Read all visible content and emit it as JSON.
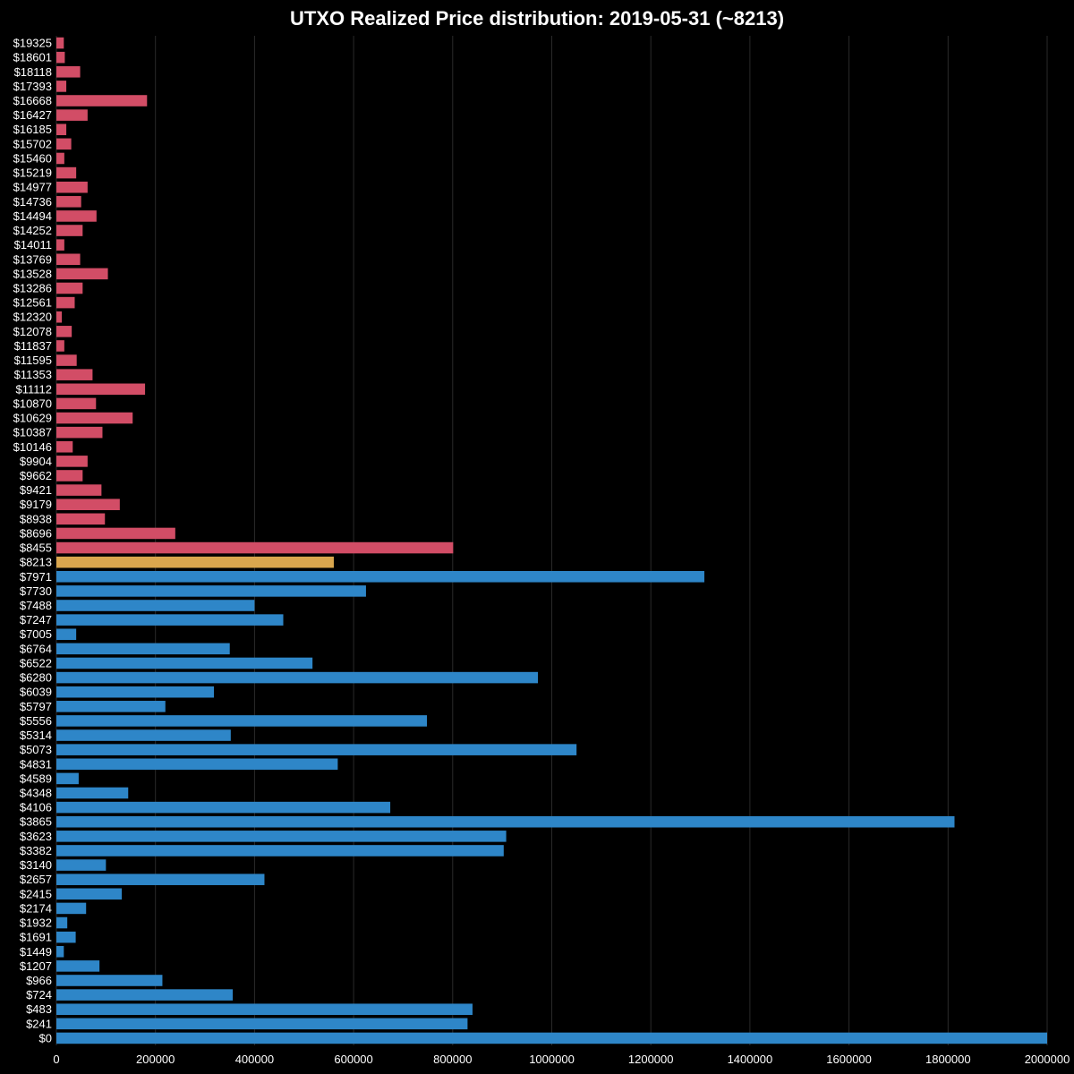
{
  "chart_data": {
    "type": "bar",
    "orientation": "horizontal",
    "title": "UTXO Realized Price distribution: 2019-05-31 (~8213)",
    "xlim": [
      0,
      2000000
    ],
    "xticks": [
      "0",
      "200000",
      "400000",
      "600000",
      "800000",
      "1000000",
      "1200000",
      "1400000",
      "1600000",
      "1800000",
      "2000000"
    ],
    "grid": true,
    "colors": {
      "below": "#2e86c8",
      "current": "#d9a64e",
      "above": "#d24d66",
      "grid": "#2a2a2a",
      "background": "#000000"
    },
    "categories": [
      "$19325",
      "$18601",
      "$18118",
      "$17393",
      "$16668",
      "$16427",
      "$16185",
      "$15702",
      "$15460",
      "$15219",
      "$14977",
      "$14736",
      "$14494",
      "$14252",
      "$14011",
      "$13769",
      "$13528",
      "$13286",
      "$12561",
      "$12320",
      "$12078",
      "$11837",
      "$11595",
      "$11353",
      "$11112",
      "$10870",
      "$10629",
      "$10387",
      "$10146",
      "$9904",
      "$9662",
      "$9421",
      "$9179",
      "$8938",
      "$8696",
      "$8455",
      "$8213",
      "$7971",
      "$7730",
      "$7488",
      "$7247",
      "$7005",
      "$6764",
      "$6522",
      "$6280",
      "$6039",
      "$5797",
      "$5556",
      "$5314",
      "$5073",
      "$4831",
      "$4589",
      "$4348",
      "$4106",
      "$3865",
      "$3623",
      "$3382",
      "$3140",
      "$2657",
      "$2415",
      "$2174",
      "$1932",
      "$1691",
      "$1449",
      "$1207",
      "$966",
      "$724",
      "$483",
      "$241",
      "$0"
    ],
    "values": [
      15000,
      17000,
      48000,
      20000,
      183000,
      63000,
      20000,
      30000,
      16000,
      40000,
      63000,
      50000,
      81000,
      53000,
      16000,
      48000,
      104000,
      53000,
      37000,
      11000,
      31000,
      16000,
      41000,
      73000,
      179000,
      80000,
      154000,
      93000,
      33000,
      63000,
      53000,
      91000,
      128000,
      98000,
      240000,
      801000,
      560000,
      1308000,
      625000,
      400000,
      458000,
      40000,
      350000,
      517000,
      972000,
      318000,
      220000,
      748000,
      352000,
      1050000,
      568000,
      45000,
      145000,
      674000,
      1813000,
      908000,
      903000,
      100000,
      420000,
      132000,
      60000,
      22000,
      39000,
      15000,
      87000,
      214000,
      356000,
      840000,
      830000,
      2000000
    ],
    "highlight_category": "$8213"
  }
}
